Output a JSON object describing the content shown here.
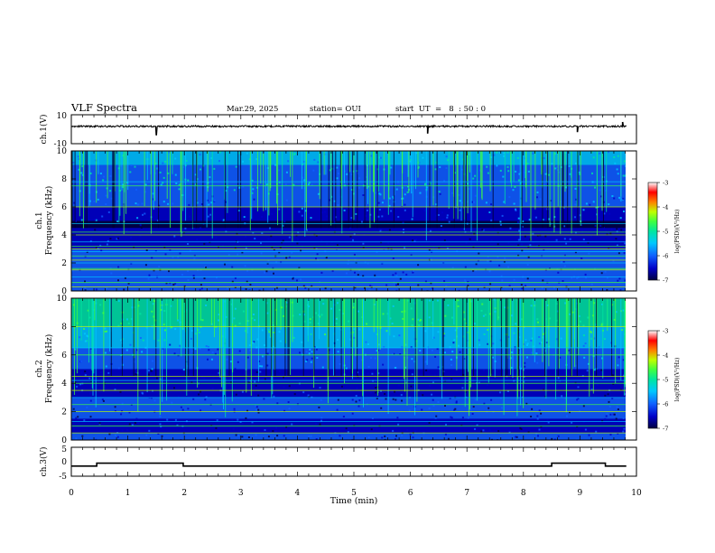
{
  "header": {
    "title": "VLF Spectra",
    "date": "Mar.29, 2025",
    "station": "station= OUI",
    "start": "start  UT  =   8  : 50 : 0"
  },
  "colors": {
    "colormap": [
      "#000040",
      "#0000c8",
      "#1060ff",
      "#00c8ff",
      "#00e6a0",
      "#40ff40",
      "#c0ff00",
      "#ff8000",
      "#ff0000",
      "#ffffff"
    ],
    "trace": "#000000"
  },
  "chart_data": [
    {
      "type": "line",
      "name": "ch.1 waveform",
      "ylabel": "ch.1(V)",
      "yticks": [
        "10",
        "-10"
      ],
      "ylim": [
        -10,
        10
      ],
      "x": [
        0,
        1.5,
        1.55,
        6.3,
        6.35,
        8.95,
        9.0,
        9.75,
        9.8,
        9.82
      ],
      "y": [
        2.0,
        2.0,
        -4.0,
        2.0,
        -3.0,
        2.0,
        -2.0,
        2.0,
        5.0,
        2.0
      ]
    },
    {
      "type": "heatmap",
      "name": "ch.1 spectrogram",
      "ylabel": "ch.1\nFrequency (kHz)",
      "ylabel_line1": "ch.1",
      "ylabel_line2": "Frequency (kHz)",
      "yticks": [
        "0",
        "2",
        "4",
        "6",
        "8",
        "10"
      ],
      "ylim": [
        0,
        10
      ],
      "xlim": [
        0,
        10
      ],
      "data_end_min": 9.82,
      "colorbar": {
        "label": "log(PSD)(V²/Hz)",
        "ticks": [
          "-3",
          "-4",
          "-5",
          "-6",
          "-7"
        ],
        "range": [
          -7,
          -3
        ]
      },
      "horizontal_lines_khz": [
        0.3,
        0.6,
        1.0,
        1.5,
        1.6,
        2.0,
        2.2,
        2.5,
        2.8,
        3.0,
        3.2,
        3.5,
        4.0,
        4.2,
        4.8,
        6.0,
        7.5,
        7.8
      ]
    },
    {
      "type": "heatmap",
      "name": "ch.2 spectrogram",
      "ylabel": "ch.2\nFrequency (kHz)",
      "ylabel_line1": "ch.2",
      "ylabel_line2": "Frequency (kHz)",
      "yticks": [
        "0",
        "2",
        "4",
        "6",
        "8",
        "10"
      ],
      "ylim": [
        0,
        10
      ],
      "xlim": [
        0,
        10
      ],
      "data_end_min": 9.82,
      "colorbar": {
        "label": "log(PSD)(V²/Hz)",
        "ticks": [
          "-3",
          "-4",
          "-5",
          "-6",
          "-7"
        ],
        "range": [
          -7,
          -3
        ]
      },
      "horizontal_lines_khz": [
        0.5,
        1.0,
        1.3,
        2.0,
        2.5,
        3.0,
        3.5,
        4.0,
        4.2,
        4.5,
        6.0,
        6.5,
        8.0
      ]
    },
    {
      "type": "line",
      "name": "ch.3 waveform",
      "ylabel": "ch.3(V)",
      "yticks": [
        "5",
        "0",
        "-5"
      ],
      "ylim": [
        -5,
        5
      ],
      "baseline_v": -1.5,
      "pulses": [
        [
          0.45,
          1.98,
          -0.5
        ],
        [
          8.5,
          9.45,
          -0.5
        ]
      ],
      "data_end_min": 9.82
    }
  ],
  "x_axis": {
    "label": "Time (min)",
    "ticks": [
      "0",
      "1",
      "2",
      "3",
      "4",
      "5",
      "6",
      "7",
      "8",
      "9",
      "10"
    ],
    "range": [
      0,
      10
    ]
  }
}
